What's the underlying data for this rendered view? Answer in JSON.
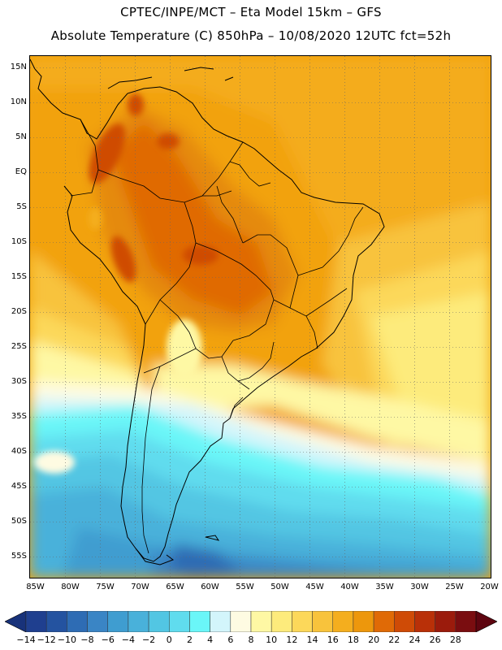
{
  "title": {
    "line1": "CPTEC/INPE/MCT –  Eta Model 15km – GFS",
    "line2": "Absolute Temperature (C) 850hPa – 10/08/2020 12UTC fct=52h"
  },
  "latitude_labels": [
    "15N",
    "10N",
    "5N",
    "EQ",
    "5S",
    "10S",
    "15S",
    "20S",
    "25S",
    "30S",
    "35S",
    "40S",
    "45S",
    "50S",
    "55S"
  ],
  "longitude_labels": [
    "85W",
    "80W",
    "75W",
    "70W",
    "65W",
    "60W",
    "55W",
    "50W",
    "45W",
    "40W",
    "35W",
    "30W",
    "25W",
    "20W"
  ],
  "colorbar": {
    "labels": [
      "−14",
      "−12",
      "−10",
      "−8",
      "−6",
      "−4",
      "−2",
      "0",
      "2",
      "4",
      "6",
      "8",
      "10",
      "12",
      "14",
      "16",
      "18",
      "20",
      "22",
      "24",
      "26",
      "28"
    ],
    "colors": [
      "#1f3f8f",
      "#2453a0",
      "#2e6cb4",
      "#3a85c5",
      "#3f9dd0",
      "#49b1da",
      "#52c6e3",
      "#60dcee",
      "#6af6f8",
      "#d3f5fb",
      "#fefbe2",
      "#fef8a4",
      "#fdeb7c",
      "#fcd85a",
      "#f8c33c",
      "#f4ae1e",
      "#ed970c",
      "#e06a06",
      "#cf4b06",
      "#b93008",
      "#9b1b0c",
      "#7a0d10"
    ],
    "underflow_color": "#18327a",
    "overflow_color": "#5e0510"
  }
}
